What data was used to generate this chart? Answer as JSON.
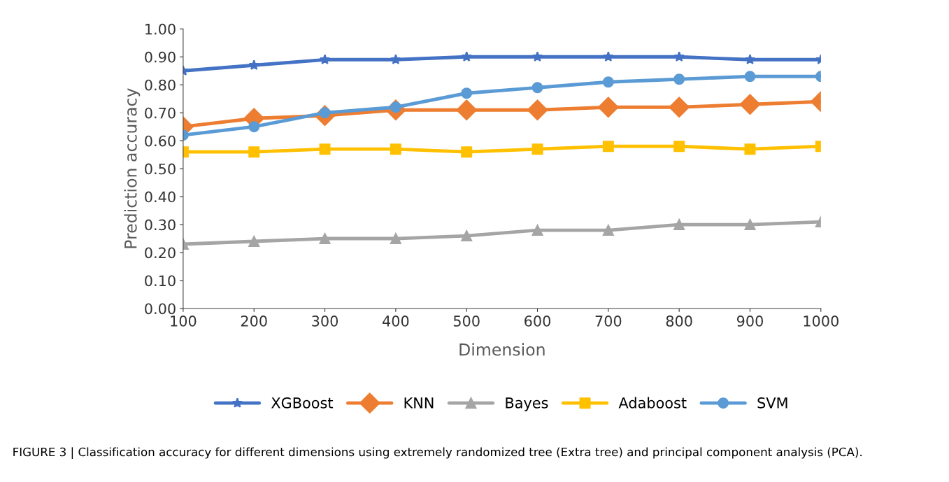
{
  "chart_data": {
    "type": "line",
    "xlabel": "Dimension",
    "ylabel": "Prediction accuracy",
    "x": [
      100,
      200,
      300,
      400,
      500,
      600,
      700,
      800,
      900,
      1000
    ],
    "xlim": [
      100,
      1000
    ],
    "xticks": [
      100,
      200,
      300,
      400,
      500,
      600,
      700,
      800,
      900,
      1000
    ],
    "ylim": [
      0,
      1
    ],
    "yticks": [
      {
        "value": 0,
        "label": "0.00"
      },
      {
        "value": 0.1,
        "label": "0.10"
      },
      {
        "value": 0.2,
        "label": "0.20"
      },
      {
        "value": 0.3,
        "label": "0.30"
      },
      {
        "value": 0.4,
        "label": "0.40"
      },
      {
        "value": 0.5,
        "label": "0.50"
      },
      {
        "value": 0.6,
        "label": "0.60"
      },
      {
        "value": 0.7,
        "label": "0.70"
      },
      {
        "value": 0.8,
        "label": "0.80"
      },
      {
        "value": 0.9,
        "label": "0.90"
      },
      {
        "value": 1.0,
        "label": "1.00"
      }
    ],
    "grid": false,
    "legend": "bottom",
    "line_style": "solid",
    "series": [
      {
        "name": "XGBoost",
        "color": "#4472c4",
        "marker": "star",
        "values": [
          0.85,
          0.87,
          0.89,
          0.89,
          0.9,
          0.9,
          0.9,
          0.9,
          0.89,
          0.89
        ]
      },
      {
        "name": "KNN",
        "color": "#ed7d31",
        "marker": "diamond",
        "values": [
          0.65,
          0.68,
          0.69,
          0.71,
          0.71,
          0.71,
          0.72,
          0.72,
          0.73,
          0.74
        ]
      },
      {
        "name": "Bayes",
        "color": "#a5a5a5",
        "marker": "triangle",
        "values": [
          0.23,
          0.24,
          0.25,
          0.25,
          0.26,
          0.28,
          0.28,
          0.3,
          0.3,
          0.31
        ]
      },
      {
        "name": "Adaboost",
        "color": "#ffc000",
        "marker": "square",
        "values": [
          0.56,
          0.56,
          0.57,
          0.57,
          0.56,
          0.57,
          0.58,
          0.58,
          0.57,
          0.58
        ]
      },
      {
        "name": "SVM",
        "color": "#5b9bd5",
        "marker": "circle",
        "values": [
          0.62,
          0.65,
          0.7,
          0.72,
          0.77,
          0.79,
          0.81,
          0.82,
          0.83,
          0.83
        ]
      }
    ],
    "annotations": [
      "FIGURE 3 | Classification accuracy for different dimensions using extremely randomized tree (Extra tree) and principal component analysis (PCA)."
    ]
  }
}
